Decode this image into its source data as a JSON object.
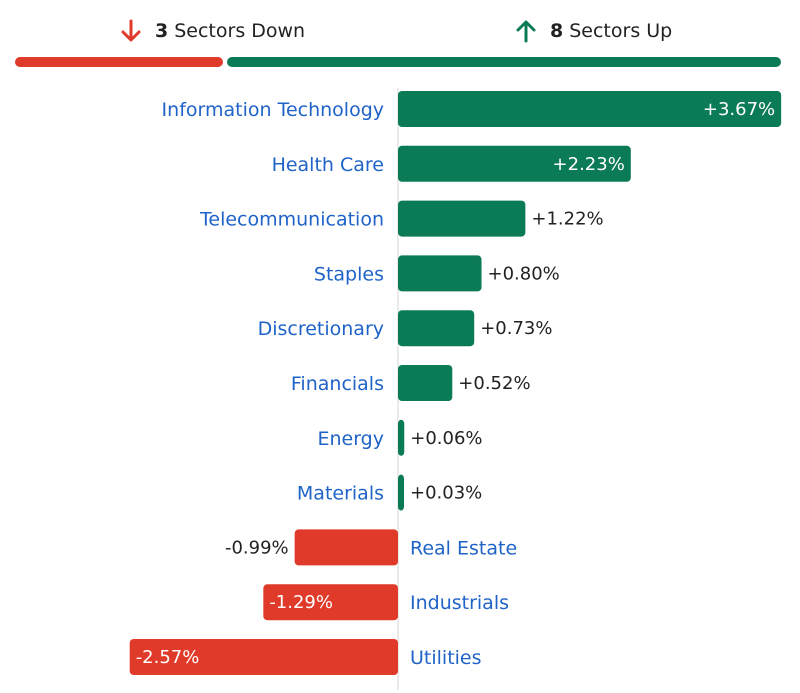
{
  "summary": {
    "down": {
      "count": "3",
      "text": "Sectors Down",
      "icon": "arrow-down-icon",
      "color": "#e03a2a"
    },
    "up": {
      "count": "8",
      "text": "Sectors Up",
      "icon": "arrow-up-icon",
      "color": "#0b7b57"
    }
  },
  "colors": {
    "positive": "#0b7b57",
    "negative": "#e03a2a",
    "label": "#1f63c8",
    "axis": "#d5d5d5"
  },
  "chart_data": {
    "type": "bar",
    "orientation": "horizontal",
    "categories": [
      "Information Technology",
      "Health Care",
      "Telecommunication",
      "Staples",
      "Discretionary",
      "Financials",
      "Energy",
      "Materials",
      "Real Estate",
      "Industrials",
      "Utilities"
    ],
    "values": [
      3.67,
      2.23,
      1.22,
      0.8,
      0.73,
      0.52,
      0.06,
      0.03,
      -0.99,
      -1.29,
      -2.57
    ],
    "value_labels": [
      "+3.67%",
      "+2.23%",
      "+1.22%",
      "+0.80%",
      "+0.73%",
      "+0.52%",
      "+0.06%",
      "+0.03%",
      "-0.99%",
      "-1.29%",
      "-2.57%"
    ],
    "unit": "%",
    "xlim": [
      -2.57,
      3.67
    ],
    "grid": false
  }
}
